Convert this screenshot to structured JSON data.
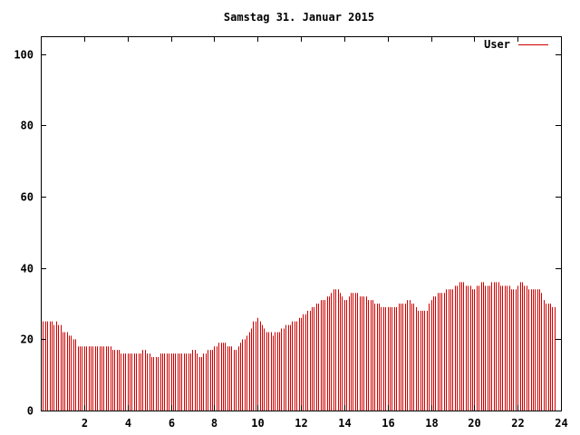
{
  "chart_data": {
    "type": "bar",
    "title": "Samstag 31. Januar 2015",
    "xlabel": "",
    "ylabel": "",
    "xlim": [
      0,
      24
    ],
    "ylim": [
      0,
      105
    ],
    "x_ticks": [
      2,
      4,
      6,
      8,
      10,
      12,
      14,
      16,
      18,
      20,
      22,
      24
    ],
    "y_ticks": [
      0,
      20,
      40,
      60,
      80,
      100
    ],
    "grid": false,
    "legend_position": "top-right",
    "series": [
      {
        "name": "User",
        "color": "#cc0000",
        "sample_interval_hours": 0.1,
        "values": [
          25,
          25,
          25,
          25,
          25,
          25,
          24,
          25,
          24,
          24,
          22,
          22,
          22,
          21,
          21,
          20,
          20,
          18,
          18,
          18,
          18,
          18,
          18,
          18,
          18,
          18,
          18,
          18,
          18,
          18,
          18,
          18,
          18,
          17,
          17,
          17,
          17,
          16,
          16,
          16,
          16,
          16,
          16,
          16,
          16,
          16,
          16,
          17,
          17,
          16,
          16,
          15,
          15,
          15,
          15,
          16,
          16,
          16,
          16,
          16,
          16,
          16,
          16,
          16,
          16,
          16,
          16,
          16,
          16,
          16,
          17,
          17,
          16,
          15,
          15,
          16,
          16,
          17,
          17,
          17,
          18,
          18,
          19,
          19,
          19,
          19,
          18,
          18,
          18,
          17,
          17,
          18,
          19,
          20,
          20,
          21,
          22,
          23,
          25,
          25,
          26,
          25,
          24,
          23,
          22,
          22,
          22,
          21,
          22,
          22,
          22,
          23,
          23,
          24,
          24,
          24,
          25,
          25,
          25,
          26,
          26,
          27,
          27,
          28,
          28,
          29,
          29,
          30,
          30,
          31,
          31,
          31,
          32,
          32,
          33,
          34,
          34,
          34,
          33,
          32,
          31,
          31,
          32,
          33,
          33,
          33,
          33,
          32,
          32,
          32,
          32,
          31,
          31,
          31,
          30,
          30,
          30,
          29,
          29,
          29,
          29,
          29,
          29,
          29,
          29,
          30,
          30,
          30,
          30,
          31,
          31,
          30,
          30,
          29,
          28,
          28,
          28,
          28,
          28,
          30,
          31,
          32,
          32,
          33,
          33,
          33,
          33,
          34,
          34,
          34,
          34,
          35,
          35,
          36,
          36,
          36,
          35,
          35,
          35,
          34,
          34,
          35,
          35,
          36,
          36,
          35,
          35,
          35,
          36,
          36,
          36,
          36,
          35,
          35,
          35,
          35,
          35,
          34,
          34,
          34,
          35,
          36,
          36,
          35,
          35,
          34,
          34,
          34,
          34,
          34,
          34,
          33,
          31,
          30,
          30,
          30,
          29,
          29
        ]
      }
    ]
  }
}
